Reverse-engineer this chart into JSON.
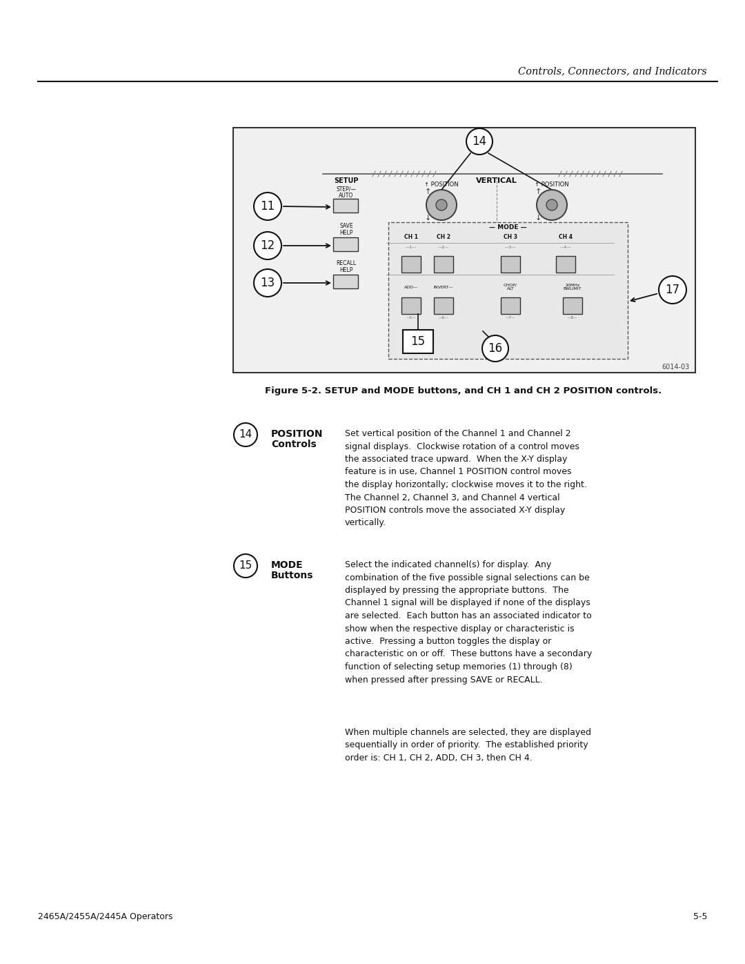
{
  "page_bg": "#ffffff",
  "header_italic": "Controls, Connectors, and Indicators",
  "figure_caption": "Figure 5-2. SETUP and MODE buttons, and CH 1 and CH 2 POSITION controls.",
  "footer_left": "2465A/2455A/2445A Operators",
  "footer_right": "5-5",
  "item14_label": "POSITION\nControls",
  "item14_text": "Set vertical position of the Channel 1 and Channel 2\nsignal displays.  Clockwise rotation of a control moves\nthe associated trace upward.  When the X-Y display\nfeature is in use, Channel 1 POSITION control moves\nthe display horizontally; clockwise moves it to the right.\nThe Channel 2, Channel 3, and Channel 4 vertical\nPOSITION controls move the associated X-Y display\nvertically.",
  "item15_label": "MODE\nButtons",
  "item15_text": "Select the indicated channel(s) for display.  Any\ncombination of the five possible signal selections can be\ndisplayed by pressing the appropriate buttons.  The\nChannel 1 signal will be displayed if none of the displays\nare selected.  Each button has an associated indicator to\nshow when the respective display or characteristic is\nactive.  Pressing a button toggles the display or\ncharacteristic on or off.  These buttons have a secondary\nfunction of selecting setup memories (1) through (8)\nwhen pressed after pressing SAVE or RECALL.",
  "item15_text2": "When multiple channels are selected, they are displayed\nsequentially in order of priority.  The established priority\norder is: CH 1, CH 2, ADD, CH 3, then CH 4."
}
